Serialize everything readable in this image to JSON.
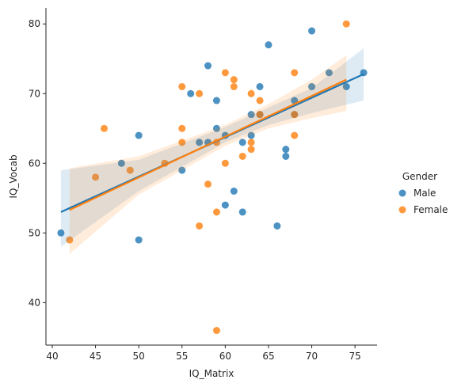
{
  "chart_data": {
    "type": "scatter",
    "x_label": "IQ_Matrix",
    "y_label": "IQ_Vocab",
    "legend_title": "Gender",
    "legend_position": "right",
    "xlim": [
      39.27,
      77.55
    ],
    "ylim": [
      33.9,
      82.3
    ],
    "xticks": [
      40,
      45,
      50,
      55,
      60,
      65,
      70,
      75
    ],
    "yticks": [
      40,
      50,
      60,
      70,
      80
    ],
    "series": [
      {
        "name": "Male",
        "color": "#1f77b4",
        "x": [
          41,
          50,
          50,
          48,
          55,
          56,
          57,
          58,
          58,
          59,
          59,
          60,
          60,
          61,
          62,
          62,
          63,
          63,
          64,
          64,
          65,
          66,
          67,
          67,
          68,
          68,
          70,
          70,
          72,
          74,
          76
        ],
        "values": [
          50,
          64,
          49,
          60,
          59,
          70,
          63,
          74,
          63,
          69,
          65,
          64,
          54,
          56,
          53,
          63,
          67,
          64,
          71,
          67,
          77,
          51,
          62,
          61,
          69,
          67,
          79,
          71,
          73,
          71,
          73
        ],
        "fit_x": [
          41,
          76
        ],
        "fit_y": [
          53,
          72.8
        ],
        "ci_x": [
          41,
          50,
          60,
          65,
          70,
          76
        ],
        "ci_lower": [
          48,
          56,
          63,
          65.5,
          67.2,
          69
        ],
        "ci_upper": [
          59,
          60.5,
          65.2,
          68,
          70.8,
          76.5
        ]
      },
      {
        "name": "Female",
        "color": "#ff7f0e",
        "x": [
          42,
          45,
          46,
          49,
          53,
          55,
          55,
          55,
          57,
          57,
          58,
          59,
          59,
          59,
          60,
          60,
          61,
          61,
          62,
          63,
          63,
          63,
          64,
          64,
          68,
          68,
          68,
          74
        ],
        "values": [
          49,
          58,
          65,
          59,
          60,
          71,
          65,
          63,
          70,
          51,
          57,
          53,
          36,
          63,
          73,
          60,
          72,
          71,
          61,
          70,
          63,
          62,
          69,
          67,
          73,
          67,
          64,
          80
        ],
        "fit_x": [
          42,
          74
        ],
        "fit_y": [
          53.3,
          72
        ],
        "ci_x": [
          42,
          50,
          60,
          65,
          70,
          74
        ],
        "ci_lower": [
          47,
          55.5,
          62.5,
          65,
          66.5,
          67.5
        ],
        "ci_upper": [
          59.3,
          61,
          65.5,
          68.5,
          72,
          75.5
        ]
      }
    ]
  }
}
